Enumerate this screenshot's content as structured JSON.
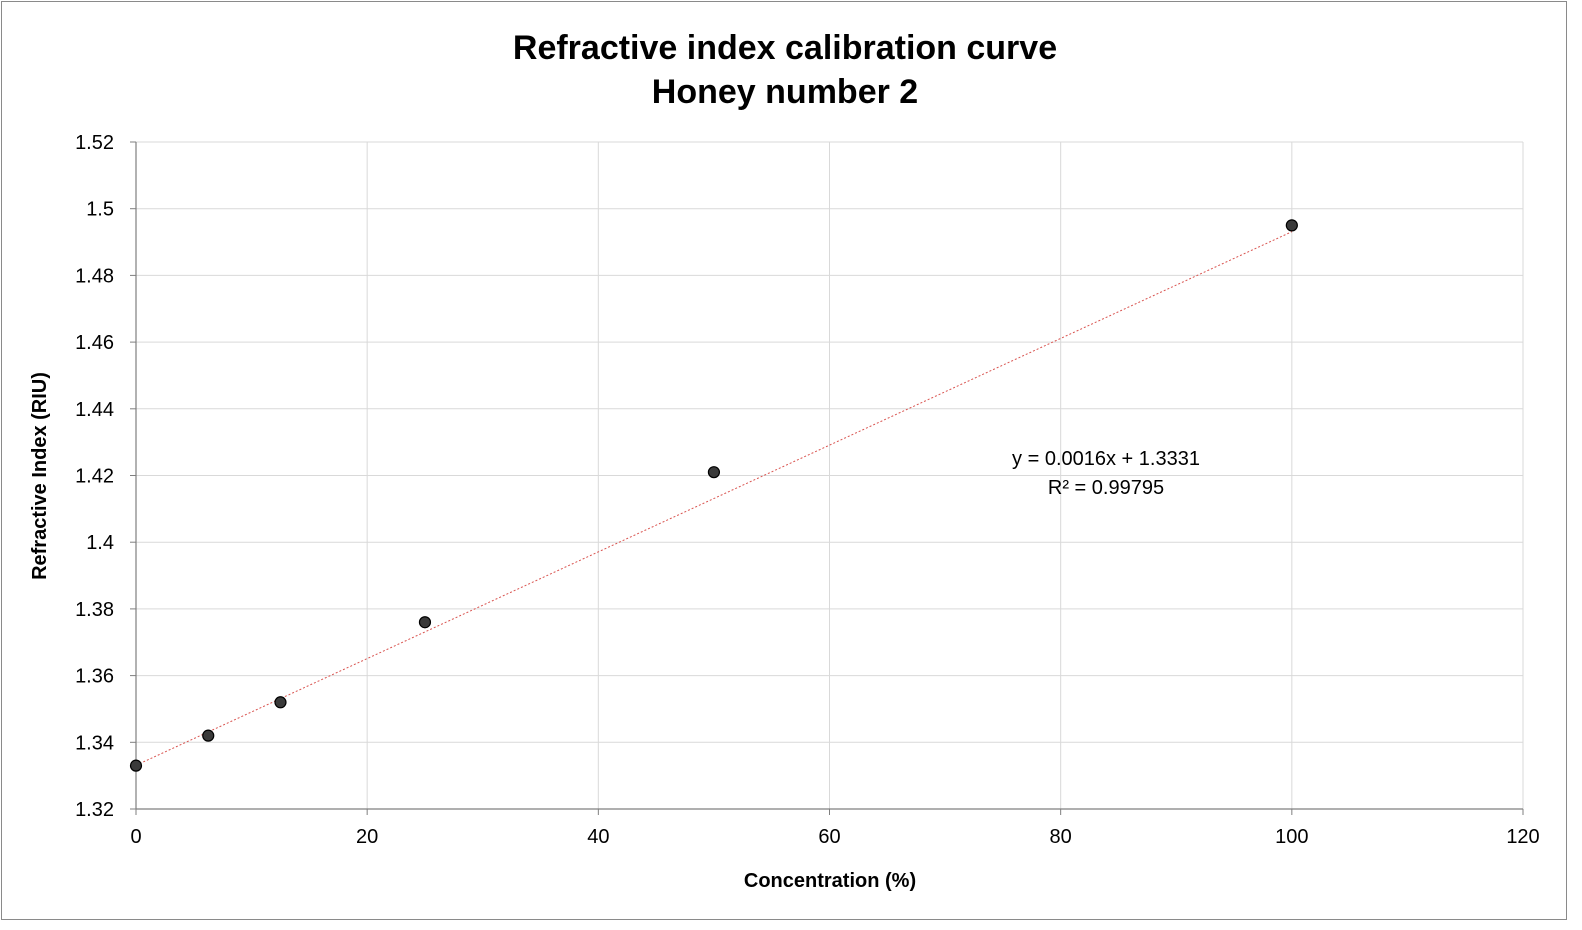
{
  "chart_data": {
    "type": "scatter",
    "title": [
      "Refractive index calibration curve",
      "Honey number 2"
    ],
    "xlabel": "Concentration (%)",
    "ylabel": "Refractive Index (RIU)",
    "xlim": [
      0,
      120
    ],
    "ylim": [
      1.32,
      1.52
    ],
    "x_ticks": [
      "0",
      "20",
      "40",
      "60",
      "80",
      "100",
      "120"
    ],
    "y_ticks": [
      "1.32",
      "1.34",
      "1.36",
      "1.38",
      "1.4",
      "1.42",
      "1.44",
      "1.46",
      "1.48",
      "1.5",
      "1.52"
    ],
    "grid": true,
    "legend": "none",
    "series": [
      {
        "x": [
          0,
          6.25,
          12.5,
          25,
          50,
          100
        ],
        "y": [
          1.333,
          1.342,
          1.352,
          1.376,
          1.421,
          1.495
        ],
        "marker_color": "#3a3a3a",
        "marker_edge": "#000000"
      }
    ],
    "trendline": {
      "type": "linear",
      "slope": 0.0016,
      "intercept": 1.3331,
      "x_range": [
        0,
        100
      ],
      "color": "#d9534f",
      "style": "dotted"
    },
    "annotations": [
      "y = 0.0016x + 1.3331",
      "R² = 0.99795"
    ]
  }
}
